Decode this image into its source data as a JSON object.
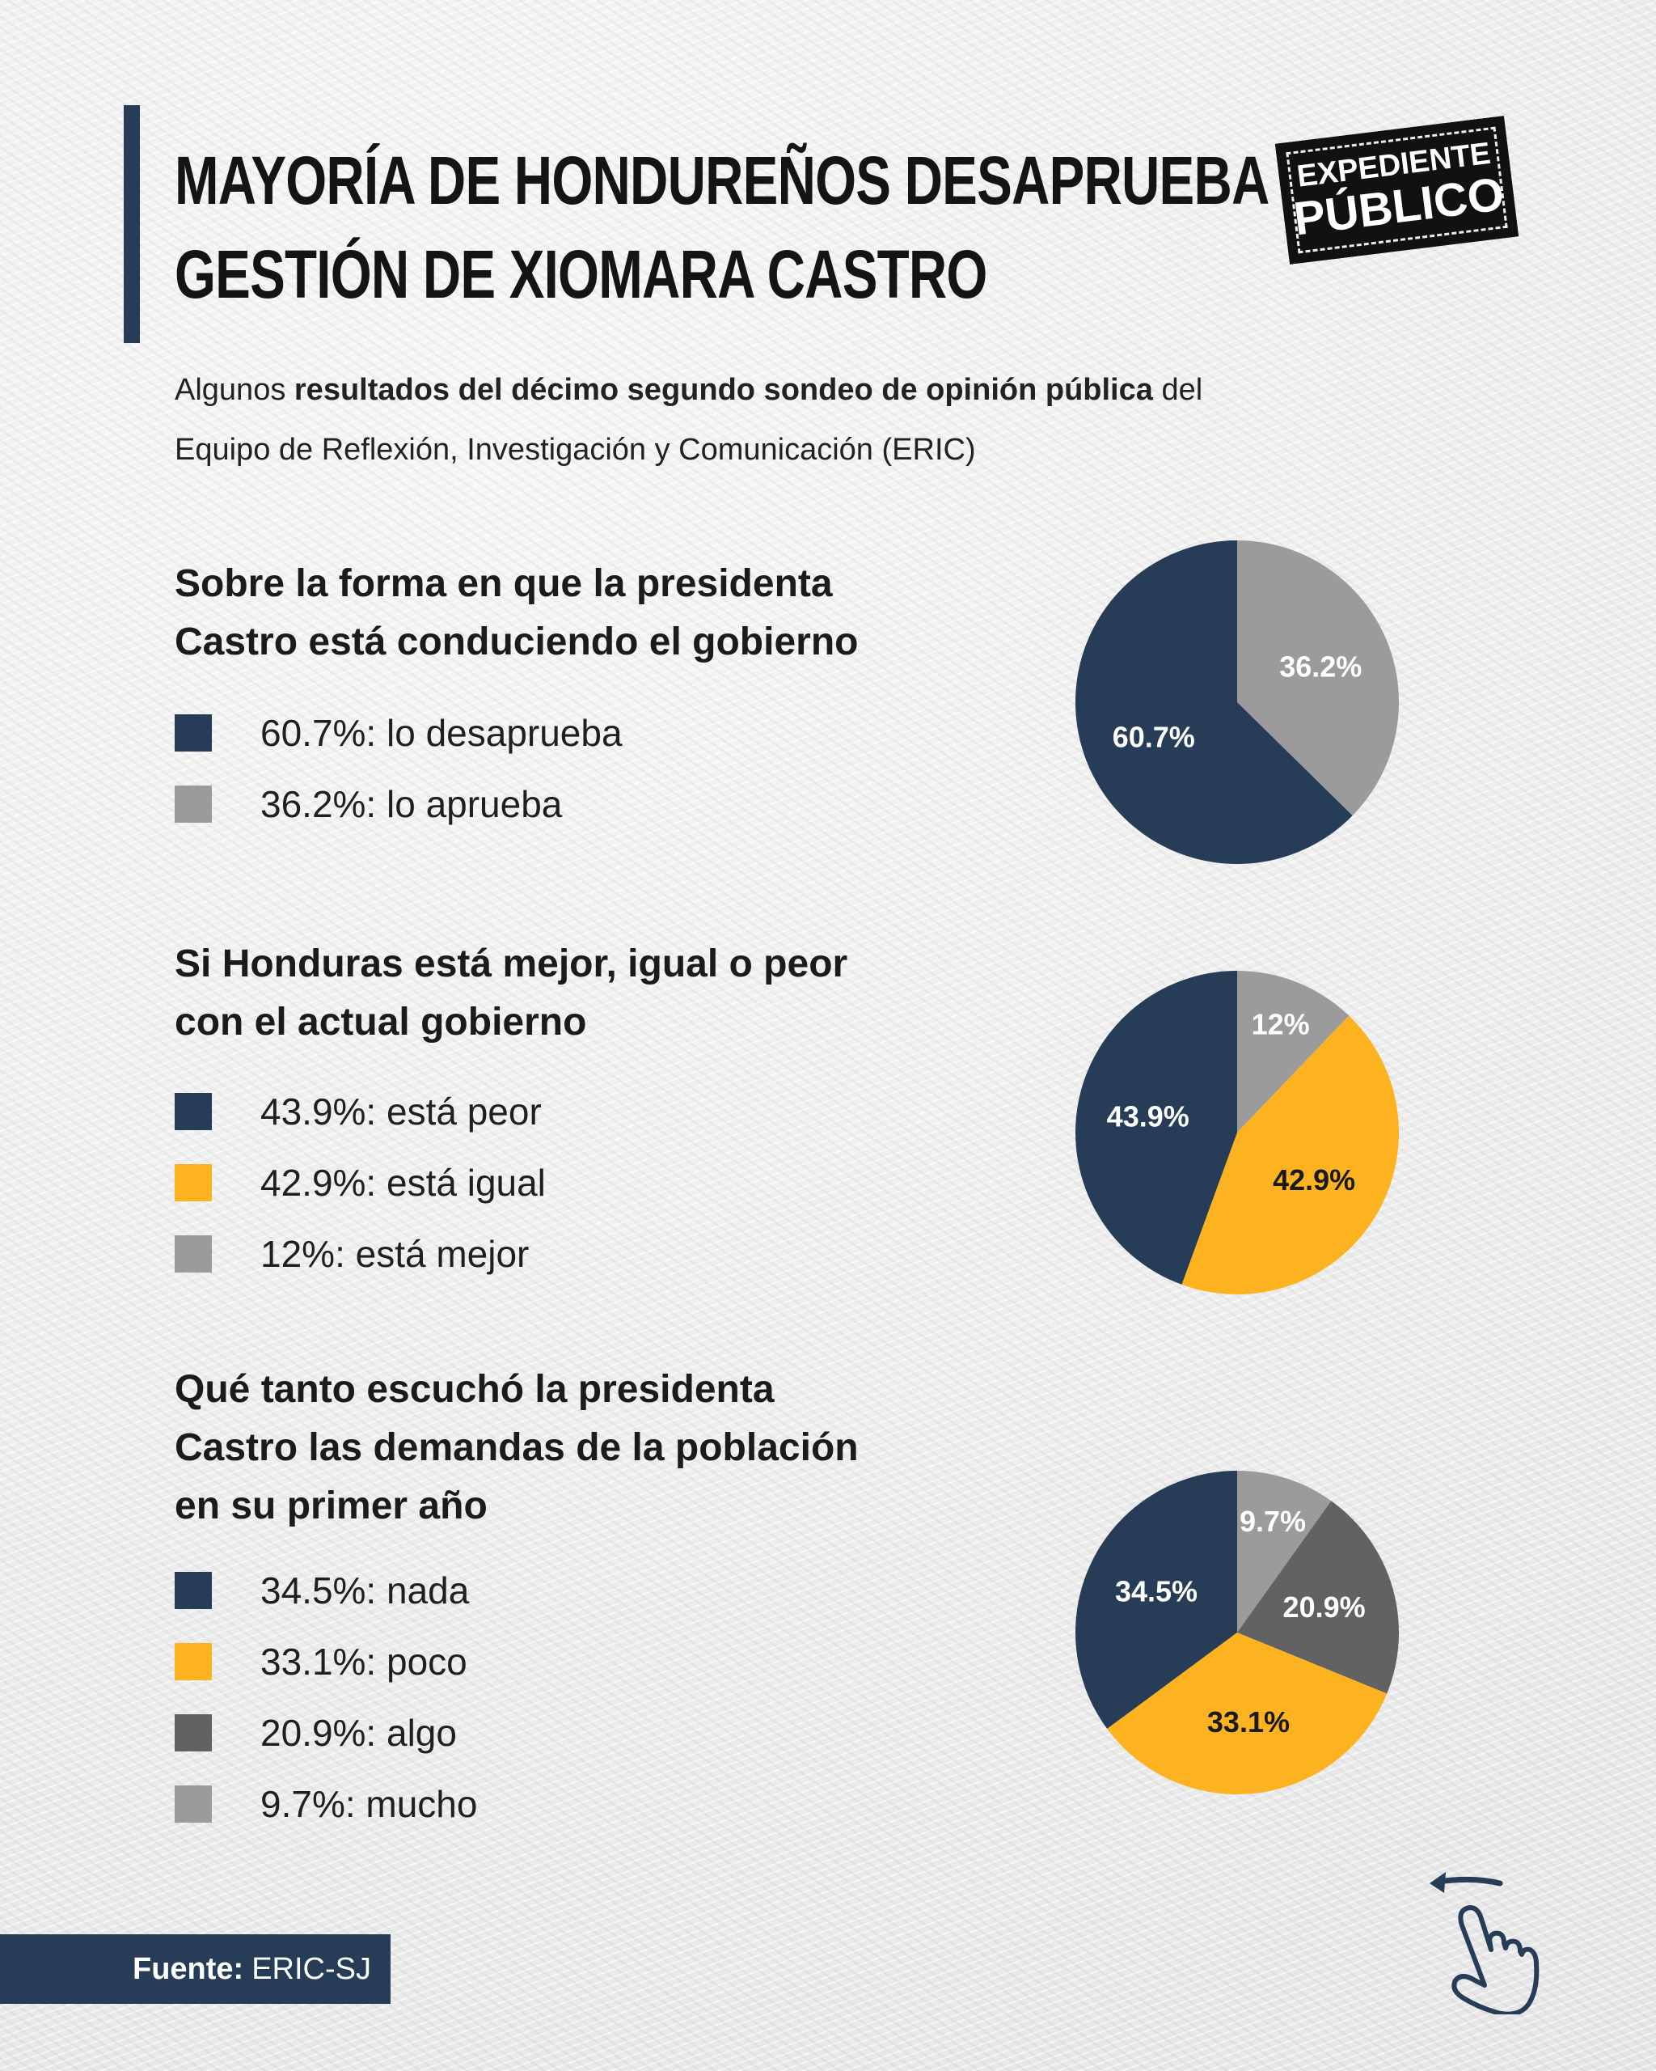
{
  "header": {
    "title_line1": "MAYORÍA DE HONDUREÑOS DESAPRUEBA",
    "title_line2": "GESTIÓN DE XIOMARA CASTRO",
    "logo_line1": "EXPEDIENTE",
    "logo_line2": "PÚBLICO"
  },
  "subtitle": {
    "prefix": "Algunos ",
    "bold": "resultados del décimo segundo sondeo de opinión pública",
    "suffix": " del",
    "line2": "Equipo de Reflexión, Investigación y Comunicación (ERIC)"
  },
  "colors": {
    "navy": "#263c57",
    "light_gray": "#9b9b9b",
    "dark_gray": "#626262",
    "yellow": "#fdb31f"
  },
  "chart_data": [
    {
      "type": "pie",
      "title": "Sobre la forma en que la presidenta Castro está conduciendo el gobierno",
      "title_lines": [
        "Sobre la forma en que la presidenta",
        "Castro está conduciendo el gobierno"
      ],
      "slices": [
        {
          "label": "lo aprueba",
          "value": 36.2,
          "display": "36.2%",
          "legend": "36.2%: lo aprueba",
          "color": "#9b9b9b",
          "text_color": "#ffffff"
        },
        {
          "label": "lo desaprueba",
          "value": 60.7,
          "display": "60.7%",
          "legend": "60.7%: lo desaprueba",
          "color": "#263c57",
          "text_color": "#ffffff"
        }
      ],
      "legend_order": [
        1,
        0
      ]
    },
    {
      "type": "pie",
      "title": "Si Honduras está mejor, igual o peor con el actual gobierno",
      "title_lines": [
        "Si Honduras está mejor, igual o peor",
        "con el actual gobierno"
      ],
      "slices": [
        {
          "label": "está mejor",
          "value": 12,
          "display": "12%",
          "legend": "12%: está mejor",
          "color": "#9b9b9b",
          "text_color": "#ffffff"
        },
        {
          "label": "está igual",
          "value": 42.9,
          "display": "42.9%",
          "legend": "42.9%: está igual",
          "color": "#fdb31f",
          "text_color": "#1a1a1a"
        },
        {
          "label": "está peor",
          "value": 43.9,
          "display": "43.9%",
          "legend": "43.9%: está peor",
          "color": "#263c57",
          "text_color": "#ffffff"
        }
      ],
      "legend_order": [
        2,
        1,
        0
      ]
    },
    {
      "type": "pie",
      "title": "Qué tanto escuchó la presidenta Castro las demandas de la población en su primer año",
      "title_lines": [
        "Qué tanto escuchó la presidenta",
        "Castro las demandas de la población",
        "en su primer año"
      ],
      "slices": [
        {
          "label": "mucho",
          "value": 9.7,
          "display": "9.7%",
          "legend": "9.7%: mucho",
          "color": "#9b9b9b",
          "text_color": "#ffffff"
        },
        {
          "label": "algo",
          "value": 20.9,
          "display": "20.9%",
          "legend": "20.9%: algo",
          "color": "#626262",
          "text_color": "#ffffff"
        },
        {
          "label": "poco",
          "value": 33.1,
          "display": "33.1%",
          "legend": "33.1%: poco",
          "color": "#fdb31f",
          "text_color": "#1a1a1a"
        },
        {
          "label": "nada",
          "value": 34.5,
          "display": "34.5%",
          "legend": "34.5%: nada",
          "color": "#263c57",
          "text_color": "#ffffff"
        }
      ],
      "legend_order": [
        3,
        2,
        1,
        0
      ]
    }
  ],
  "footer": {
    "label": "Fuente:",
    "value": " ERIC-SJ"
  },
  "icons": {
    "swipe": "swipe-left-hand-icon"
  }
}
